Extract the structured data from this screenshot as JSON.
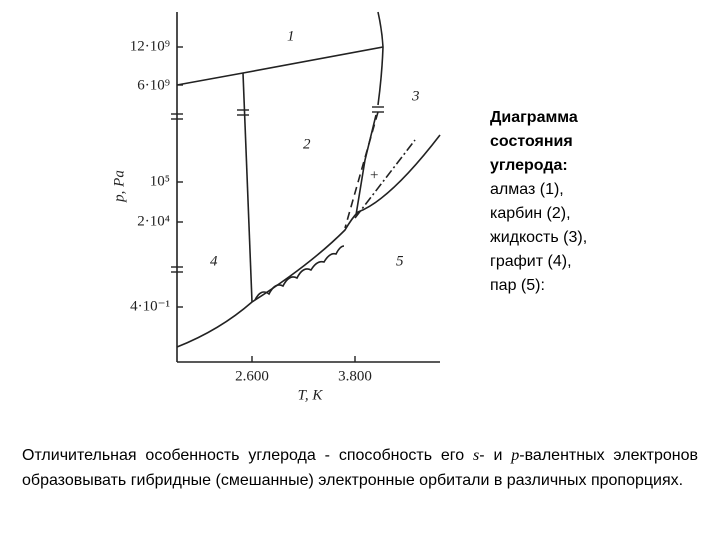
{
  "diagram": {
    "y_axis_label": "p, Pa",
    "x_axis_label": "T, K",
    "y_ticks": [
      "12·10⁹",
      "6·10⁹",
      "10⁵",
      "2·10⁴",
      "4·10⁻¹"
    ],
    "x_ticks": [
      "2.600",
      "3.800"
    ],
    "regions": [
      "1",
      "2",
      "3",
      "4",
      "5"
    ],
    "point_marker": "+"
  },
  "caption": {
    "title_lines": [
      "Диаграмма",
      "состояния",
      "углерода:"
    ],
    "items": [
      "алмаз (1),",
      "карбин (2),",
      "жидкость (3),",
      "графит (4),",
      "пар (5):"
    ]
  },
  "paragraph": {
    "parts": [
      "Отличительная особенность углерода - способность его ",
      "s",
      "- и ",
      "p",
      "-валентных электронов образовывать гибридные (смешанные) электронные орбитали в различных пропорциях."
    ]
  }
}
